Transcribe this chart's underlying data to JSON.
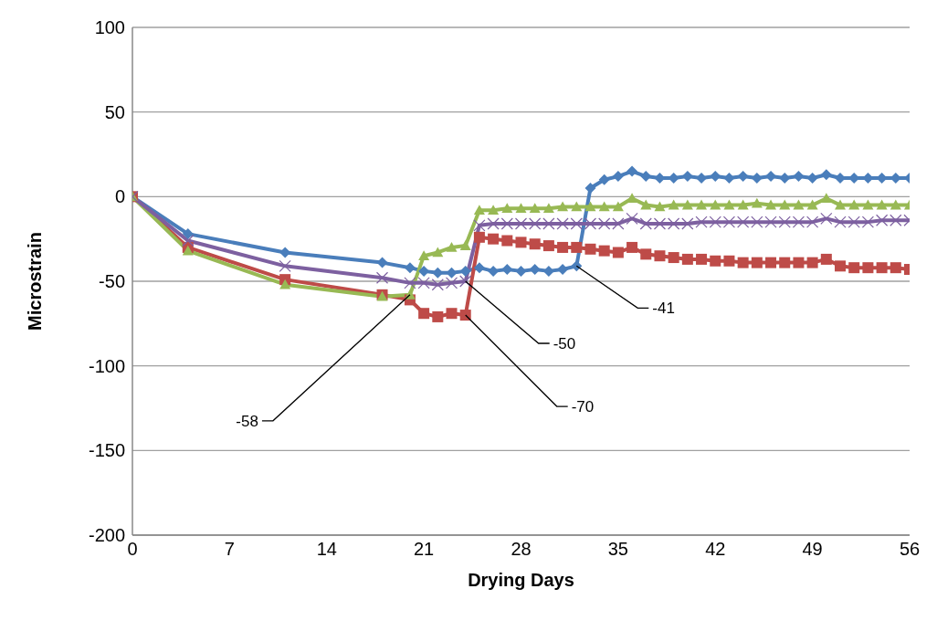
{
  "chart_data": {
    "type": "line",
    "xlabel": "Drying Days",
    "ylabel": "Microstrain",
    "x": [
      0,
      4,
      11,
      18,
      20,
      21,
      22,
      23,
      24,
      25,
      26,
      27,
      28,
      29,
      30,
      31,
      32,
      33,
      34,
      35,
      36,
      37,
      38,
      39,
      40,
      41,
      42,
      43,
      44,
      45,
      46,
      47,
      48,
      49,
      50,
      51,
      52,
      53,
      54,
      55,
      56
    ],
    "xlim": [
      0,
      56
    ],
    "xticks": [
      0,
      7,
      14,
      21,
      28,
      35,
      42,
      49,
      56
    ],
    "ylim": [
      -200,
      100
    ],
    "yticks": [
      -200,
      -150,
      -100,
      -50,
      0,
      50,
      100
    ],
    "grid": "y",
    "line_style": "solid",
    "series": [
      {
        "color": "#4a7ebb",
        "marker": "diamond",
        "values": [
          0,
          -22,
          -33,
          -39,
          -42,
          -44,
          -45,
          -45,
          -44,
          -42,
          -44,
          -43,
          -44,
          -43,
          -44,
          -43,
          -41,
          5,
          10,
          12,
          15,
          12,
          11,
          11,
          12,
          11,
          12,
          11,
          12,
          11,
          12,
          11,
          12,
          11,
          13,
          11,
          11,
          11,
          11,
          11,
          11
        ]
      },
      {
        "color": "#be4b48",
        "marker": "square",
        "values": [
          0,
          -30,
          -49,
          -58,
          -61,
          -69,
          -71,
          -69,
          -70,
          -24,
          -25,
          -26,
          -27,
          -28,
          -29,
          -30,
          -30,
          -31,
          -32,
          -33,
          -30,
          -34,
          -35,
          -36,
          -37,
          -37,
          -38,
          -38,
          -39,
          -39,
          -39,
          -39,
          -39,
          -39,
          -37,
          -41,
          -42,
          -42,
          -42,
          -42,
          -43
        ]
      },
      {
        "color": "#98b954",
        "marker": "triangle",
        "values": [
          0,
          -32,
          -52,
          -59,
          -58,
          -35,
          -33,
          -30,
          -29,
          -8,
          -8,
          -7,
          -7,
          -7,
          -7,
          -6,
          -6,
          -6,
          -6,
          -6,
          -1,
          -5,
          -6,
          -5,
          -5,
          -5,
          -5,
          -5,
          -5,
          -4,
          -5,
          -5,
          -5,
          -5,
          -1,
          -5,
          -5,
          -5,
          -5,
          -5,
          -5
        ]
      },
      {
        "color": "#7d60a0",
        "marker": "cross",
        "values": [
          0,
          -26,
          -41,
          -48,
          -51,
          -51,
          -52,
          -51,
          -50,
          -17,
          -16,
          -16,
          -16,
          -16,
          -16,
          -16,
          -16,
          -16,
          -16,
          -16,
          -13,
          -16,
          -16,
          -16,
          -16,
          -15,
          -15,
          -15,
          -15,
          -15,
          -15,
          -15,
          -15,
          -15,
          -13,
          -15,
          -15,
          -15,
          -14,
          -14,
          -14
        ]
      }
    ],
    "annotations": [
      {
        "text": "-41",
        "x": 32,
        "y": -41
      },
      {
        "text": "-50",
        "x": 24,
        "y": -50
      },
      {
        "text": "-70",
        "x": 24,
        "y": -70
      },
      {
        "text": "-58",
        "x": 20,
        "y": -58
      }
    ]
  }
}
